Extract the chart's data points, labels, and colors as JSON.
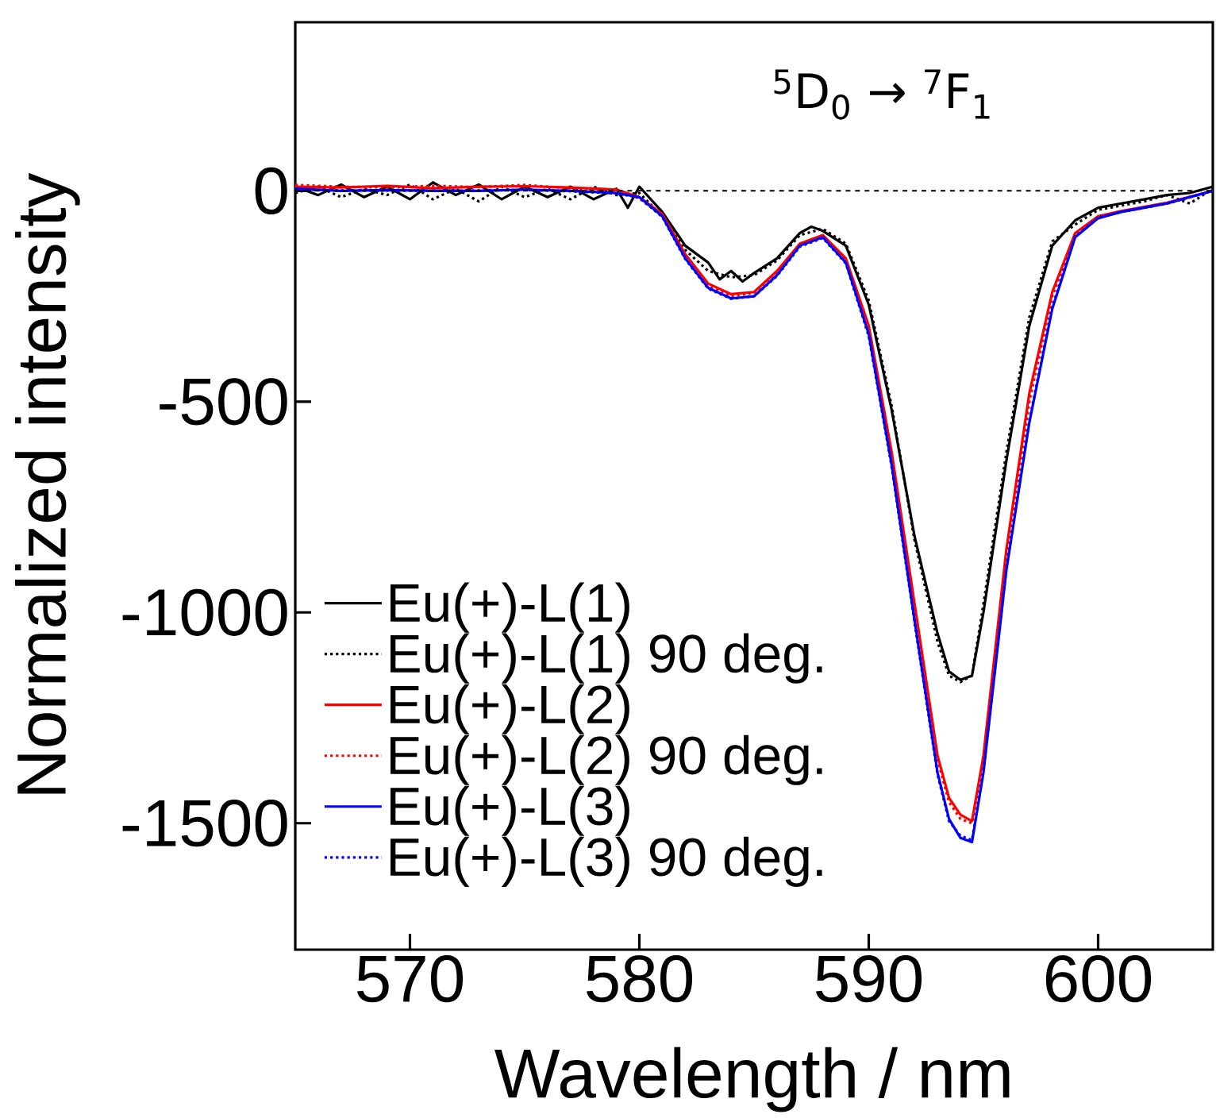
{
  "chart_data": {
    "type": "line",
    "xlabel": "Wavelength / nm",
    "ylabel": "Normalized intensity",
    "annotations": [
      "$^{5}$D$_{0}$ → $^{7}$F$_{1}$"
    ],
    "xlim": [
      565,
      605
    ],
    "ylim": [
      -1800,
      400
    ],
    "xticks": [
      570,
      580,
      590,
      600
    ],
    "yticks": [
      -1500,
      -1000,
      -500,
      0
    ],
    "grid": false,
    "legend": "bottom left",
    "marker": "none",
    "ref_lines": [
      {
        "axis": "y",
        "value": 0,
        "color": "#000000",
        "line_style": "dashed"
      }
    ],
    "series": [
      {
        "name": "Eu(+)-L(1)",
        "color": "#000000",
        "line_style": "solid",
        "x": [
          565,
          566,
          567,
          568,
          569,
          570,
          571,
          572,
          573,
          574,
          575,
          576,
          577,
          578,
          579,
          579.5,
          580,
          581,
          582,
          583,
          583.5,
          584,
          584.5,
          585,
          586,
          587,
          587.5,
          588,
          589,
          590,
          591,
          592,
          593,
          593.5,
          594,
          594.5,
          595,
          596,
          597,
          598,
          599,
          600,
          601,
          602,
          603,
          604,
          605
        ],
        "values": [
          10,
          -10,
          15,
          -15,
          10,
          -20,
          20,
          -10,
          15,
          -20,
          10,
          -15,
          10,
          -20,
          5,
          -40,
          10,
          -50,
          -130,
          -170,
          -210,
          -190,
          -215,
          -195,
          -160,
          -100,
          -85,
          -95,
          -130,
          -270,
          -520,
          -820,
          -1050,
          -1140,
          -1160,
          -1150,
          -1000,
          -640,
          -320,
          -130,
          -70,
          -40,
          -30,
          -20,
          -10,
          -5,
          10
        ]
      },
      {
        "name": "Eu(+)-L(1) 90 deg.",
        "color": "#000000",
        "line_style": "dotted",
        "x": [
          565,
          566,
          567,
          568,
          569,
          570,
          571,
          572,
          573,
          574,
          575,
          576,
          577,
          578,
          579,
          580,
          581,
          582,
          583,
          584,
          585,
          586,
          587,
          588,
          589,
          590,
          591,
          592,
          593,
          593.5,
          594,
          594.5,
          595,
          596,
          597,
          598,
          599,
          600,
          601,
          602,
          603,
          604,
          605
        ],
        "values": [
          -5,
          10,
          -15,
          5,
          -10,
          15,
          -20,
          5,
          -25,
          10,
          -15,
          5,
          -20,
          10,
          -10,
          -5,
          -60,
          -140,
          -190,
          -205,
          -200,
          -165,
          -105,
          -90,
          -125,
          -260,
          -510,
          -830,
          -1070,
          -1150,
          -1165,
          -1150,
          -980,
          -620,
          -300,
          -120,
          -80,
          -45,
          -35,
          -25,
          -10,
          -30,
          5
        ]
      },
      {
        "name": "Eu(+)-L(2)",
        "color": "#ff0000",
        "line_style": "solid",
        "x": [
          565,
          567,
          569,
          571,
          573,
          575,
          577,
          579,
          580,
          581,
          582,
          583,
          584,
          585,
          586,
          587,
          588,
          589,
          590,
          591,
          592,
          593,
          593.5,
          594,
          594.5,
          595,
          596,
          597,
          598,
          599,
          600,
          601,
          602,
          603,
          604,
          605
        ],
        "values": [
          10,
          8,
          12,
          6,
          10,
          11,
          8,
          3,
          -15,
          -55,
          -150,
          -220,
          -245,
          -240,
          -190,
          -125,
          -105,
          -160,
          -320,
          -620,
          -980,
          -1340,
          -1440,
          -1480,
          -1495,
          -1340,
          -850,
          -480,
          -240,
          -100,
          -60,
          -48,
          -38,
          -28,
          -14,
          0
        ]
      },
      {
        "name": "Eu(+)-L(2) 90 deg.",
        "color": "#ff0000",
        "line_style": "dotted",
        "x": [
          565,
          567,
          569,
          571,
          573,
          575,
          577,
          579,
          580,
          581,
          582,
          583,
          584,
          585,
          586,
          587,
          588,
          589,
          590,
          591,
          592,
          593,
          593.5,
          594,
          594.5,
          595,
          596,
          597,
          598,
          599,
          600,
          601,
          602,
          603,
          604,
          605
        ],
        "values": [
          14,
          10,
          8,
          12,
          9,
          14,
          6,
          2,
          -18,
          -60,
          -155,
          -225,
          -250,
          -242,
          -192,
          -128,
          -108,
          -165,
          -330,
          -630,
          -990,
          -1350,
          -1450,
          -1490,
          -1500,
          -1350,
          -870,
          -500,
          -250,
          -105,
          -62,
          -50,
          -40,
          -30,
          -15,
          0
        ]
      },
      {
        "name": "Eu(+)-L(3)",
        "color": "#0000ff",
        "line_style": "solid",
        "x": [
          565,
          567,
          569,
          571,
          573,
          575,
          577,
          579,
          580,
          581,
          582,
          583,
          584,
          585,
          586,
          587,
          588,
          589,
          590,
          591,
          592,
          593,
          593.5,
          594,
          594.5,
          595,
          596,
          597,
          598,
          599,
          600,
          601,
          602,
          603,
          604,
          605
        ],
        "values": [
          5,
          0,
          2,
          0,
          0,
          3,
          0,
          -5,
          -15,
          -60,
          -160,
          -230,
          -255,
          -250,
          -200,
          -130,
          -110,
          -170,
          -340,
          -650,
          -1020,
          -1380,
          -1490,
          -1535,
          -1545,
          -1380,
          -900,
          -550,
          -280,
          -110,
          -65,
          -50,
          -40,
          -30,
          -15,
          0
        ]
      },
      {
        "name": "Eu(+)-L(3) 90 deg.",
        "color": "#0000ff",
        "line_style": "dotted",
        "x": [
          565,
          567,
          569,
          571,
          573,
          575,
          577,
          579,
          580,
          581,
          582,
          583,
          584,
          585,
          586,
          587,
          588,
          589,
          590,
          591,
          592,
          593,
          593.5,
          594,
          594.5,
          595,
          596,
          597,
          598,
          599,
          600,
          601,
          602,
          603,
          604,
          605
        ],
        "values": [
          4,
          1,
          1,
          0,
          1,
          2,
          -1,
          -6,
          -16,
          -62,
          -162,
          -232,
          -256,
          -250,
          -202,
          -132,
          -112,
          -172,
          -345,
          -655,
          -1025,
          -1385,
          -1495,
          -1530,
          -1540,
          -1375,
          -895,
          -545,
          -275,
          -108,
          -63,
          -50,
          -40,
          -30,
          -15,
          0
        ]
      }
    ]
  }
}
